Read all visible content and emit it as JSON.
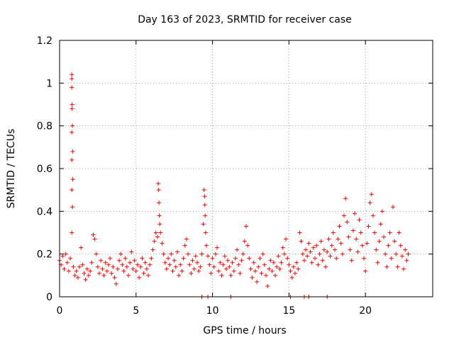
{
  "chart_data": {
    "type": "scatter",
    "title": "Day 163 of 2023, SRMTID for receiver case",
    "xlabel": "GPS time / hours",
    "ylabel": "SRMTID / TECUs",
    "xlim": [
      0,
      24.4
    ],
    "ylim": [
      0,
      1.2
    ],
    "x_ticks": [
      0,
      5,
      10,
      15,
      20
    ],
    "x_tick_labels": [
      "0",
      "5",
      "10",
      "15",
      "20"
    ],
    "y_ticks": [
      0,
      0.2,
      0.4,
      0.6,
      0.8,
      1.0,
      1.2
    ],
    "y_tick_labels": [
      "0",
      "0.2",
      "0.4",
      "0.6",
      "0.8",
      "1",
      "1.2"
    ],
    "grid": true,
    "marker": "+",
    "color": "#ff0000",
    "series": [
      {
        "name": "SRMTID",
        "points": [
          [
            0.0,
            0.17
          ],
          [
            0.1,
            0.15
          ],
          [
            0.2,
            0.19
          ],
          [
            0.3,
            0.13
          ],
          [
            0.4,
            0.2
          ],
          [
            0.5,
            0.16
          ],
          [
            0.6,
            0.12
          ],
          [
            0.7,
            0.18
          ],
          [
            0.8,
            1.04
          ],
          [
            0.8,
            1.02
          ],
          [
            0.8,
            0.98
          ],
          [
            0.82,
            0.9
          ],
          [
            0.82,
            0.88
          ],
          [
            0.84,
            0.8
          ],
          [
            0.8,
            0.77
          ],
          [
            0.85,
            0.68
          ],
          [
            0.8,
            0.64
          ],
          [
            0.86,
            0.55
          ],
          [
            0.8,
            0.5
          ],
          [
            0.84,
            0.42
          ],
          [
            0.8,
            0.3
          ],
          [
            0.9,
            0.14
          ],
          [
            1.0,
            0.1
          ],
          [
            1.1,
            0.12
          ],
          [
            1.2,
            0.09
          ],
          [
            1.3,
            0.14
          ],
          [
            1.4,
            0.23
          ],
          [
            1.5,
            0.15
          ],
          [
            1.6,
            0.11
          ],
          [
            1.7,
            0.08
          ],
          [
            1.8,
            0.13
          ],
          [
            1.9,
            0.1
          ],
          [
            2.0,
            0.12
          ],
          [
            2.1,
            0.16
          ],
          [
            2.2,
            0.29
          ],
          [
            2.3,
            0.27
          ],
          [
            2.4,
            0.2
          ],
          [
            2.5,
            0.14
          ],
          [
            2.6,
            0.11
          ],
          [
            2.7,
            0.17
          ],
          [
            2.8,
            0.13
          ],
          [
            2.9,
            0.1
          ],
          [
            3.0,
            0.16
          ],
          [
            3.1,
            0.12
          ],
          [
            3.2,
            0.15
          ],
          [
            3.3,
            0.18
          ],
          [
            3.4,
            0.11
          ],
          [
            3.5,
            0.14
          ],
          [
            3.6,
            0.09
          ],
          [
            3.7,
            0.06
          ],
          [
            3.8,
            0.13
          ],
          [
            3.9,
            0.17
          ],
          [
            4.0,
            0.2
          ],
          [
            4.1,
            0.15
          ],
          [
            4.2,
            0.12
          ],
          [
            4.3,
            0.18
          ],
          [
            4.4,
            0.14
          ],
          [
            4.5,
            0.1
          ],
          [
            4.6,
            0.16
          ],
          [
            4.7,
            0.21
          ],
          [
            4.8,
            0.13
          ],
          [
            4.9,
            0.17
          ],
          [
            5.0,
            0.12
          ],
          [
            5.1,
            0.15
          ],
          [
            5.2,
            0.09
          ],
          [
            5.3,
            0.14
          ],
          [
            5.4,
            0.18
          ],
          [
            5.5,
            0.11
          ],
          [
            5.6,
            0.16
          ],
          [
            5.7,
            0.13
          ],
          [
            5.8,
            0.1
          ],
          [
            5.9,
            0.15
          ],
          [
            6.0,
            0.18
          ],
          [
            6.1,
            0.22
          ],
          [
            6.2,
            0.26
          ],
          [
            6.3,
            0.3
          ],
          [
            6.4,
            0.28
          ],
          [
            6.45,
            0.53
          ],
          [
            6.48,
            0.5
          ],
          [
            6.5,
            0.44
          ],
          [
            6.52,
            0.38
          ],
          [
            6.55,
            0.34
          ],
          [
            6.6,
            0.3
          ],
          [
            6.7,
            0.25
          ],
          [
            6.8,
            0.2
          ],
          [
            6.9,
            0.16
          ],
          [
            7.0,
            0.13
          ],
          [
            7.1,
            0.18
          ],
          [
            7.2,
            0.15
          ],
          [
            7.3,
            0.2
          ],
          [
            7.4,
            0.12
          ],
          [
            7.5,
            0.17
          ],
          [
            7.6,
            0.14
          ],
          [
            7.7,
            0.21
          ],
          [
            7.8,
            0.1
          ],
          [
            7.9,
            0.15
          ],
          [
            8.0,
            0.12
          ],
          [
            8.1,
            0.18
          ],
          [
            8.2,
            0.24
          ],
          [
            8.3,
            0.27
          ],
          [
            8.4,
            0.2
          ],
          [
            8.5,
            0.15
          ],
          [
            8.6,
            0.11
          ],
          [
            8.7,
            0.17
          ],
          [
            8.8,
            0.13
          ],
          [
            8.9,
            0.19
          ],
          [
            9.0,
            0.16
          ],
          [
            9.1,
            0.12
          ],
          [
            9.2,
            0.14
          ],
          [
            9.3,
            0.2
          ],
          [
            9.4,
            0.34
          ],
          [
            9.45,
            0.5
          ],
          [
            9.48,
            0.47
          ],
          [
            9.5,
            0.43
          ],
          [
            9.52,
            0.38
          ],
          [
            9.55,
            0.3
          ],
          [
            9.6,
            0.24
          ],
          [
            9.7,
            0.19
          ],
          [
            9.8,
            0.15
          ],
          [
            9.9,
            0.11
          ],
          [
            10.0,
            0.18
          ],
          [
            10.1,
            0.14
          ],
          [
            10.2,
            0.2
          ],
          [
            10.3,
            0.23
          ],
          [
            10.4,
            0.12
          ],
          [
            10.5,
            0.16
          ],
          [
            10.6,
            0.1
          ],
          [
            10.7,
            0.15
          ],
          [
            10.8,
            0.19
          ],
          [
            10.9,
            0.13
          ],
          [
            11.0,
            0.17
          ],
          [
            11.1,
            0.14
          ],
          [
            11.2,
            0.1
          ],
          [
            11.3,
            0.16
          ],
          [
            11.4,
            0.12
          ],
          [
            11.5,
            0.18
          ],
          [
            11.6,
            0.22
          ],
          [
            11.7,
            0.15
          ],
          [
            11.8,
            0.11
          ],
          [
            11.9,
            0.17
          ],
          [
            12.0,
            0.2
          ],
          [
            12.1,
            0.26
          ],
          [
            12.2,
            0.33
          ],
          [
            12.3,
            0.24
          ],
          [
            12.4,
            0.18
          ],
          [
            12.5,
            0.13
          ],
          [
            12.6,
            0.09
          ],
          [
            12.7,
            0.16
          ],
          [
            12.8,
            0.12
          ],
          [
            12.9,
            0.07
          ],
          [
            13.0,
            0.14
          ],
          [
            13.1,
            0.18
          ],
          [
            13.2,
            0.11
          ],
          [
            13.3,
            0.2
          ],
          [
            13.4,
            0.15
          ],
          [
            13.5,
            0.1
          ],
          [
            13.6,
            0.05
          ],
          [
            13.7,
            0.13
          ],
          [
            13.8,
            0.17
          ],
          [
            13.9,
            0.12
          ],
          [
            14.0,
            0.16
          ],
          [
            14.1,
            0.1
          ],
          [
            14.2,
            0.14
          ],
          [
            14.3,
            0.19
          ],
          [
            14.4,
            0.13
          ],
          [
            14.5,
            0.16
          ],
          [
            14.6,
            0.23
          ],
          [
            14.7,
            0.2
          ],
          [
            14.8,
            0.27
          ],
          [
            14.9,
            0.18
          ],
          [
            15.0,
            0.15
          ],
          [
            15.1,
            0.12
          ],
          [
            15.2,
            0.09
          ],
          [
            15.3,
            0.14
          ],
          [
            15.4,
            0.11
          ],
          [
            15.5,
            0.16
          ],
          [
            15.6,
            0.13
          ],
          [
            15.7,
            0.3
          ],
          [
            15.8,
            0.26
          ],
          [
            15.9,
            0.2
          ],
          [
            16.0,
            0.17
          ],
          [
            16.1,
            0.22
          ],
          [
            16.2,
            0.19
          ],
          [
            16.3,
            0.25
          ],
          [
            16.4,
            0.21
          ],
          [
            16.5,
            0.16
          ],
          [
            16.6,
            0.23
          ],
          [
            16.7,
            0.18
          ],
          [
            16.8,
            0.24
          ],
          [
            16.9,
            0.15
          ],
          [
            17.0,
            0.2
          ],
          [
            17.1,
            0.26
          ],
          [
            17.2,
            0.17
          ],
          [
            17.3,
            0.22
          ],
          [
            17.4,
            0.14
          ],
          [
            17.5,
            0.21
          ],
          [
            17.6,
            0.27
          ],
          [
            17.7,
            0.19
          ],
          [
            17.8,
            0.24
          ],
          [
            17.9,
            0.3
          ],
          [
            18.0,
            0.22
          ],
          [
            18.1,
            0.18
          ],
          [
            18.2,
            0.27
          ],
          [
            18.3,
            0.33
          ],
          [
            18.4,
            0.25
          ],
          [
            18.5,
            0.2
          ],
          [
            18.6,
            0.38
          ],
          [
            18.7,
            0.46
          ],
          [
            18.8,
            0.35
          ],
          [
            18.9,
            0.28
          ],
          [
            19.0,
            0.22
          ],
          [
            19.1,
            0.17
          ],
          [
            19.2,
            0.31
          ],
          [
            19.3,
            0.39
          ],
          [
            19.4,
            0.27
          ],
          [
            19.5,
            0.21
          ],
          [
            19.6,
            0.36
          ],
          [
            19.7,
            0.3
          ],
          [
            19.8,
            0.24
          ],
          [
            19.9,
            0.18
          ],
          [
            20.0,
            0.12
          ],
          [
            20.1,
            0.25
          ],
          [
            20.2,
            0.33
          ],
          [
            20.3,
            0.44
          ],
          [
            20.4,
            0.48
          ],
          [
            20.5,
            0.38
          ],
          [
            20.6,
            0.3
          ],
          [
            20.7,
            0.22
          ],
          [
            20.8,
            0.16
          ],
          [
            20.9,
            0.26
          ],
          [
            21.0,
            0.34
          ],
          [
            21.1,
            0.4
          ],
          [
            21.2,
            0.28
          ],
          [
            21.3,
            0.2
          ],
          [
            21.4,
            0.14
          ],
          [
            21.5,
            0.24
          ],
          [
            21.6,
            0.3
          ],
          [
            21.7,
            0.18
          ],
          [
            21.8,
            0.42
          ],
          [
            21.9,
            0.26
          ],
          [
            22.0,
            0.2
          ],
          [
            22.1,
            0.14
          ],
          [
            22.2,
            0.3
          ],
          [
            22.3,
            0.24
          ],
          [
            22.4,
            0.19
          ],
          [
            22.5,
            0.13
          ],
          [
            22.6,
            0.22
          ],
          [
            22.7,
            0.17
          ],
          [
            22.8,
            0.2
          ],
          [
            9.3,
            0.0
          ],
          [
            9.7,
            0.0
          ],
          [
            11.2,
            0.0
          ],
          [
            15.1,
            0.0
          ],
          [
            16.0,
            0.0
          ],
          [
            16.3,
            0.0
          ],
          [
            17.5,
            0.0
          ]
        ]
      }
    ]
  }
}
